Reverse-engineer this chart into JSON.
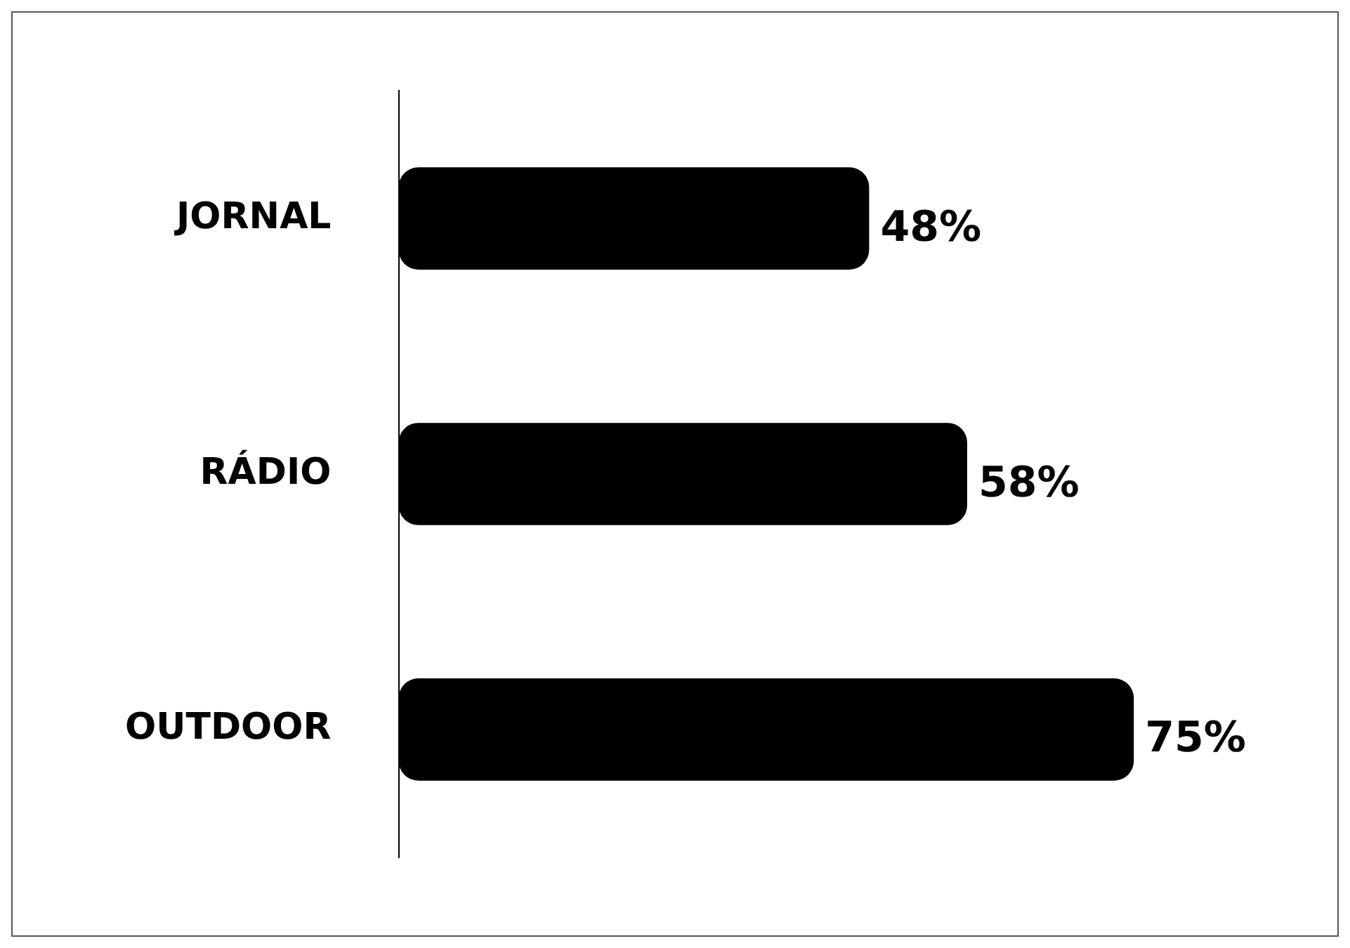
{
  "chart_data": {
    "type": "bar",
    "orientation": "horizontal",
    "categories": [
      "JORNAL",
      "RÁDIO",
      "OUTDOOR"
    ],
    "values": [
      48,
      58,
      75
    ],
    "value_labels": [
      "48%",
      "58%",
      "75%"
    ],
    "color": "#000000",
    "tick_labels": "y"
  }
}
